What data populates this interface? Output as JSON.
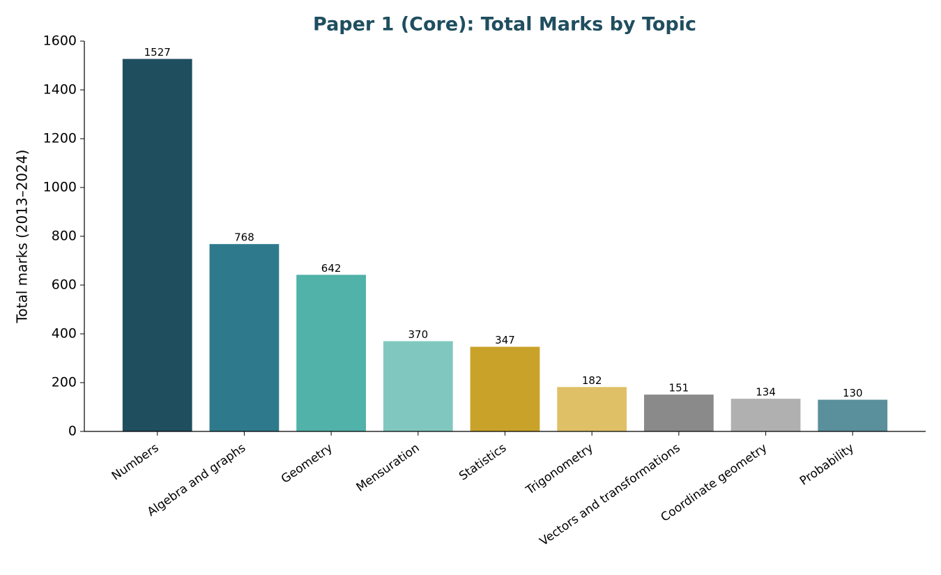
{
  "chart_data": {
    "type": "bar",
    "title": "Paper 1 (Core): Total Marks by Topic",
    "y_label": "Total marks (2013–2024)",
    "categories": [
      "Numbers",
      "Algebra and graphs",
      "Geometry",
      "Mensuration",
      "Statistics",
      "Trigonometry",
      "Vectors and transformations",
      "Coordinate geometry",
      "Probability"
    ],
    "values": [
      1527,
      768,
      642,
      370,
      347,
      182,
      151,
      134,
      130
    ],
    "colors": [
      "#1f4e5f",
      "#2e7a8c",
      "#50b2a8",
      "#80c8bf",
      "#c9a22a",
      "#e0c066",
      "#8a8a8a",
      "#b0b0b0",
      "#5a8f9c"
    ],
    "ylim": [
      0,
      1600
    ],
    "yticks": [
      0,
      200,
      400,
      600,
      800,
      1000,
      1200,
      1400,
      1600
    ],
    "grid": false
  }
}
